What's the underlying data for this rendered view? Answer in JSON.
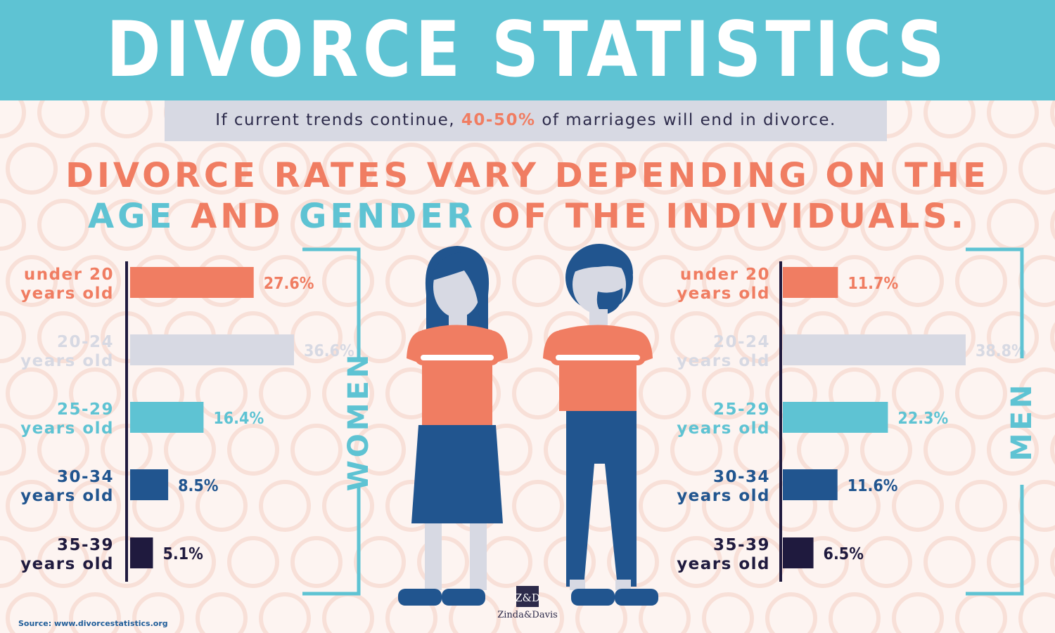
{
  "header": {
    "title": "DIVORCE STATISTICS"
  },
  "subtitle": {
    "before": "If current trends continue, ",
    "highlight": "40-50%",
    "after": " of marriages will end in divorce."
  },
  "headline": {
    "line1": "DIVORCE RATES VARY DEPENDING ON THE",
    "line2_part1": "AGE",
    "line2_part2": " AND ",
    "line2_part3": "GENDER",
    "line2_part4": " OF THE INDIVIDUALS."
  },
  "chart_data": [
    {
      "type": "bar",
      "series": [
        {
          "name": "WOMEN",
          "values": [
            27.6,
            36.6,
            16.4,
            8.5,
            5.1
          ]
        }
      ],
      "categories": [
        [
          "under 20",
          "years old"
        ],
        [
          "20-24",
          "years old"
        ],
        [
          "25-29",
          "years old"
        ],
        [
          "30-34",
          "years old"
        ],
        [
          "35-39",
          "years old"
        ]
      ],
      "data_labels": [
        "27.6%",
        "36.6%",
        "16.4%",
        "8.5%",
        "5.1%"
      ],
      "orientation": "horizontal",
      "colors": [
        "#f07d62",
        "#d7d9e3",
        "#5ec3d3",
        "#21558f",
        "#1f1a3e"
      ],
      "label_colors": [
        "#f07d62",
        "#d7d9e3",
        "#5ec3d3",
        "#21558f",
        "#1f1a3e"
      ],
      "xlim": [
        0,
        36.6
      ],
      "title": "",
      "xlabel": "",
      "ylabel": ""
    },
    {
      "type": "bar",
      "series": [
        {
          "name": "MEN",
          "values": [
            11.7,
            38.8,
            22.3,
            11.6,
            6.5
          ]
        }
      ],
      "categories": [
        [
          "under 20",
          "years old"
        ],
        [
          "20-24",
          "years old"
        ],
        [
          "25-29",
          "years old"
        ],
        [
          "30-34",
          "years old"
        ],
        [
          "35-39",
          "years old"
        ]
      ],
      "data_labels": [
        "11.7%",
        "38.8%",
        "22.3%",
        "11.6%",
        "6.5%"
      ],
      "orientation": "horizontal",
      "colors": [
        "#f07d62",
        "#d7d9e3",
        "#5ec3d3",
        "#21558f",
        "#1f1a3e"
      ],
      "label_colors": [
        "#f07d62",
        "#d7d9e3",
        "#5ec3d3",
        "#21558f",
        "#1f1a3e"
      ],
      "xlim": [
        0,
        38.8
      ],
      "title": "",
      "xlabel": "",
      "ylabel": ""
    }
  ],
  "footer": {
    "source": "Source: www.divorcestatistics.org",
    "brand_mark": "Z&D",
    "brand_name": "Zinda&Davis"
  },
  "colors": {
    "teal": "#5ec3d3",
    "coral": "#f07d62",
    "navy": "#21558f",
    "dark": "#1f1a3e",
    "grey": "#d7d9e3",
    "background": "#fdf4f1"
  },
  "icons": [
    "woman-figure-icon",
    "man-figure-icon",
    "zd-logo-icon"
  ]
}
